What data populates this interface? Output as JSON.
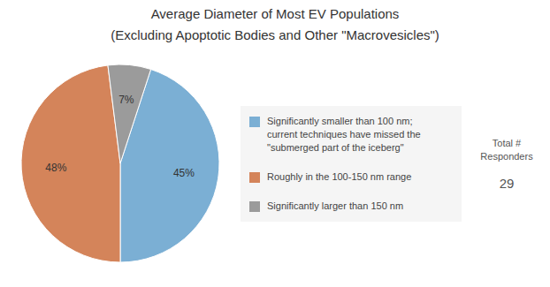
{
  "chart_data": {
    "type": "pie",
    "title": "Average Diameter of Most EV Populations",
    "subtitle": "(Excluding Apoptotic Bodies and Other \"Macrovesicles\")",
    "categories": [
      "Significantly smaller than 100 nm;\ncurrent techniques have missed the\n\"submerged part of the iceberg\"",
      "Roughly in the 100-150 nm range",
      "Significantly larger than 150 nm"
    ],
    "values": [
      45,
      48,
      7
    ],
    "value_labels": [
      "45%",
      "48%",
      "7%"
    ],
    "colors": [
      "#7bafd4",
      "#d4845a",
      "#9b9b9b"
    ],
    "data_labels": true,
    "legend": "right",
    "annotations": [
      "Total #\nResponders",
      "29"
    ]
  }
}
